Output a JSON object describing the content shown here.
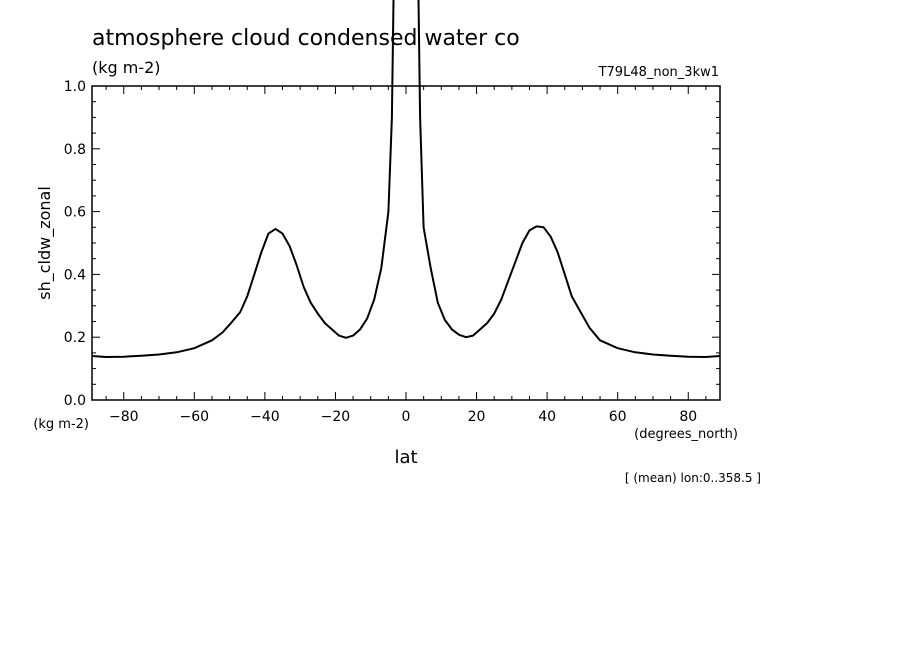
{
  "chart_data": {
    "type": "line",
    "title": "atmosphere cloud condensed water co",
    "units": "(kg m-2)",
    "dataset": "T79L48_non_3kw1",
    "ylabel": "sh_cldw_zonal",
    "yunits": "(kg m-2)",
    "xlabel": "lat",
    "xunits": "(degrees_north)",
    "note": "[ (mean) lon:0..358.5 ]",
    "xlim": [
      -89,
      89
    ],
    "ylim": [
      0,
      1.0
    ],
    "xticks": [
      -80,
      -60,
      -40,
      -20,
      0,
      20,
      40,
      60,
      80
    ],
    "yticks": [
      0.0,
      0.2,
      0.4,
      0.6,
      0.8,
      1.0
    ],
    "ytick_labels": [
      "0.0",
      "0.2",
      "0.4",
      "0.6",
      "0.8",
      "1.0"
    ],
    "grid": false,
    "series": [
      {
        "x": [
          -89,
          -85,
          -80,
          -75,
          -70,
          -65,
          -60,
          -55,
          -52,
          -50,
          -47,
          -45,
          -43,
          -41,
          -39,
          -37,
          -35,
          -33,
          -31,
          -29,
          -27,
          -25,
          -23,
          -21,
          -19,
          -17,
          -15,
          -13,
          -11,
          -9,
          -7,
          -5,
          -4,
          -3.5,
          3.5,
          4,
          5,
          7,
          9,
          11,
          13,
          15,
          17,
          19,
          21,
          23,
          25,
          27,
          29,
          31,
          33,
          35,
          37,
          39,
          41,
          43,
          45,
          47,
          50,
          52,
          55,
          60,
          65,
          70,
          75,
          80,
          85,
          89
        ],
        "y": [
          0.14,
          0.137,
          0.138,
          0.141,
          0.145,
          0.152,
          0.165,
          0.19,
          0.215,
          0.24,
          0.28,
          0.33,
          0.4,
          0.47,
          0.53,
          0.545,
          0.53,
          0.49,
          0.43,
          0.36,
          0.31,
          0.275,
          0.245,
          0.225,
          0.205,
          0.198,
          0.205,
          0.225,
          0.26,
          0.32,
          0.42,
          0.6,
          0.9,
          1.32,
          1.32,
          0.9,
          0.55,
          0.42,
          0.31,
          0.255,
          0.225,
          0.208,
          0.2,
          0.205,
          0.225,
          0.245,
          0.275,
          0.32,
          0.38,
          0.44,
          0.5,
          0.54,
          0.553,
          0.55,
          0.52,
          0.47,
          0.4,
          0.33,
          0.27,
          0.23,
          0.19,
          0.165,
          0.152,
          0.145,
          0.141,
          0.138,
          0.137,
          0.14
        ]
      }
    ]
  }
}
